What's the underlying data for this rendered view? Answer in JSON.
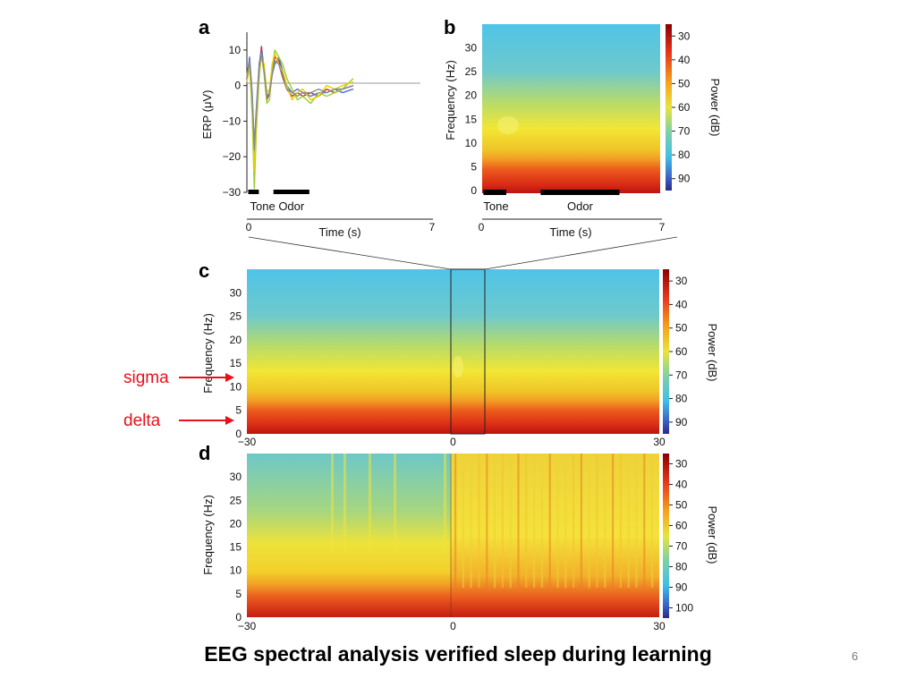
{
  "slide": {
    "title": "EEG spectral analysis verified sleep during learning",
    "page_number": "6"
  },
  "annotations": [
    {
      "label": "sigma",
      "color": "#e8101a",
      "points_to_hz": 11
    },
    {
      "label": "delta",
      "color": "#e8101a",
      "points_to_hz": 3
    }
  ],
  "chart_data": [
    {
      "panel": "a",
      "type": "line",
      "xlabel": "Time (s)",
      "ylabel": "ERP (μV)",
      "xlim": [
        0,
        7
      ],
      "ylim": [
        -30,
        15
      ],
      "x_ticks": [
        "0",
        "7"
      ],
      "y_ticks": [
        "10",
        "0",
        "−10",
        "−20",
        "−30"
      ],
      "y_tick_values": [
        10,
        0,
        -10,
        -20,
        -30
      ],
      "events": [
        {
          "label": "Tone",
          "start": 0.05,
          "end": 0.45
        },
        {
          "label": "Odor",
          "start": 1.0,
          "end": 2.35
        }
      ],
      "series_colors": [
        "#d62728",
        "#4a6fd6",
        "#9acd32",
        "#e6d000",
        "#8a8a8a"
      ],
      "series": [
        {
          "values": [
            [
              0,
              2
            ],
            [
              0.1,
              7
            ],
            [
              0.2,
              -5
            ],
            [
              0.28,
              -20
            ],
            [
              0.36,
              -8
            ],
            [
              0.46,
              5
            ],
            [
              0.55,
              11
            ],
            [
              0.65,
              4
            ],
            [
              0.75,
              -4
            ],
            [
              0.85,
              -2
            ],
            [
              0.95,
              4
            ],
            [
              1.05,
              8
            ],
            [
              1.2,
              7
            ],
            [
              1.35,
              3
            ],
            [
              1.5,
              -1
            ],
            [
              1.7,
              -3
            ],
            [
              1.9,
              -2
            ],
            [
              2.1,
              -3
            ],
            [
              2.4,
              -2
            ],
            [
              2.7,
              -3
            ],
            [
              3.0,
              -1
            ],
            [
              3.3,
              -2
            ],
            [
              3.6,
              -1
            ],
            [
              4.0,
              0
            ]
          ]
        },
        {
          "values": [
            [
              0,
              2
            ],
            [
              0.1,
              8
            ],
            [
              0.2,
              -2
            ],
            [
              0.28,
              -17
            ],
            [
              0.36,
              -6
            ],
            [
              0.46,
              6
            ],
            [
              0.55,
              10
            ],
            [
              0.65,
              5
            ],
            [
              0.75,
              -3
            ],
            [
              0.85,
              -3
            ],
            [
              0.95,
              3
            ],
            [
              1.05,
              6
            ],
            [
              1.2,
              8
            ],
            [
              1.35,
              4
            ],
            [
              1.5,
              0
            ],
            [
              1.7,
              -2
            ],
            [
              1.9,
              -1
            ],
            [
              2.1,
              -2
            ],
            [
              2.4,
              -3
            ],
            [
              2.7,
              -2
            ],
            [
              3.0,
              -2
            ],
            [
              3.3,
              -1
            ],
            [
              3.6,
              -2
            ],
            [
              4.0,
              -1
            ]
          ]
        },
        {
          "values": [
            [
              0,
              3
            ],
            [
              0.1,
              6
            ],
            [
              0.2,
              -8
            ],
            [
              0.28,
              -29
            ],
            [
              0.36,
              -12
            ],
            [
              0.46,
              2
            ],
            [
              0.55,
              9
            ],
            [
              0.65,
              3
            ],
            [
              0.75,
              -5
            ],
            [
              0.85,
              -4
            ],
            [
              0.95,
              5
            ],
            [
              1.05,
              10
            ],
            [
              1.2,
              8
            ],
            [
              1.35,
              6
            ],
            [
              1.5,
              2
            ],
            [
              1.7,
              -1
            ],
            [
              1.9,
              -4
            ],
            [
              2.1,
              -3
            ],
            [
              2.4,
              -5
            ],
            [
              2.7,
              -2
            ],
            [
              3.0,
              -3
            ],
            [
              3.3,
              -2
            ],
            [
              3.6,
              -1
            ],
            [
              4.0,
              2
            ]
          ]
        },
        {
          "values": [
            [
              0,
              1
            ],
            [
              0.1,
              5
            ],
            [
              0.2,
              -4
            ],
            [
              0.28,
              -24
            ],
            [
              0.36,
              -10
            ],
            [
              0.46,
              4
            ],
            [
              0.55,
              8
            ],
            [
              0.65,
              6
            ],
            [
              0.75,
              -2
            ],
            [
              0.85,
              -1
            ],
            [
              0.95,
              6
            ],
            [
              1.05,
              9
            ],
            [
              1.2,
              6
            ],
            [
              1.35,
              4
            ],
            [
              1.5,
              0
            ],
            [
              1.7,
              -4
            ],
            [
              1.9,
              -2
            ],
            [
              2.1,
              -1
            ],
            [
              2.4,
              -4
            ],
            [
              2.7,
              -3
            ],
            [
              3.0,
              0
            ],
            [
              3.3,
              -1
            ],
            [
              3.6,
              0
            ],
            [
              4.0,
              1
            ]
          ]
        },
        {
          "values": [
            [
              0,
              2
            ],
            [
              0.1,
              7
            ],
            [
              0.2,
              -3
            ],
            [
              0.28,
              -18
            ],
            [
              0.36,
              -7
            ],
            [
              0.46,
              5
            ],
            [
              0.55,
              9
            ],
            [
              0.65,
              4
            ],
            [
              0.75,
              -3
            ],
            [
              0.85,
              -2
            ],
            [
              0.95,
              3
            ],
            [
              1.05,
              7
            ],
            [
              1.2,
              6
            ],
            [
              1.35,
              2
            ],
            [
              1.5,
              -1
            ],
            [
              1.7,
              -2
            ],
            [
              1.9,
              -3
            ],
            [
              2.1,
              -2
            ],
            [
              2.4,
              -2
            ],
            [
              2.7,
              -1
            ],
            [
              3.0,
              -2
            ],
            [
              3.3,
              -1
            ],
            [
              3.6,
              -1
            ],
            [
              4.0,
              0
            ]
          ]
        }
      ]
    },
    {
      "panel": "b",
      "type": "heatmap",
      "xlabel": "Time (s)",
      "ylabel": "Frequency (Hz)",
      "colorbar_label": "Power (dB)",
      "xlim": [
        0,
        7
      ],
      "ylim": [
        0,
        35
      ],
      "x_ticks": [
        "0",
        "7"
      ],
      "y_ticks": [
        "30",
        "25",
        "20",
        "15",
        "10",
        "5",
        "0"
      ],
      "y_tick_values": [
        30,
        25,
        20,
        15,
        10,
        5,
        0
      ],
      "colorbar_ticks": [
        "30",
        "40",
        "50",
        "60",
        "70",
        "80",
        "90"
      ],
      "colorbar_range": [
        30,
        90
      ],
      "events": [
        {
          "label": "Tone",
          "start": 0.05,
          "end": 0.95
        },
        {
          "label": "Odor",
          "start": 2.3,
          "end": 5.4
        }
      ]
    },
    {
      "panel": "c",
      "type": "heatmap",
      "ylabel": "Frequency (Hz)",
      "colorbar_label": "Power (dB)",
      "xlim": [
        -30,
        30
      ],
      "ylim": [
        0,
        35
      ],
      "x_ticks": [
        "−30",
        "0",
        "30"
      ],
      "x_tick_values": [
        -30,
        0,
        30
      ],
      "y_ticks": [
        "30",
        "25",
        "20",
        "15",
        "10",
        "5",
        "0"
      ],
      "y_tick_values": [
        30,
        25,
        20,
        15,
        10,
        5,
        0
      ],
      "colorbar_ticks": [
        "30",
        "40",
        "50",
        "60",
        "70",
        "80",
        "90"
      ],
      "colorbar_range": [
        30,
        90
      ],
      "zoom_window": [
        0,
        7
      ]
    },
    {
      "panel": "d",
      "type": "heatmap",
      "ylabel": "Frequency (Hz)",
      "colorbar_label": "Power (dB)",
      "xlim": [
        -30,
        30
      ],
      "ylim": [
        0,
        35
      ],
      "x_ticks": [
        "−30",
        "0",
        "30"
      ],
      "x_tick_values": [
        -30,
        0,
        30
      ],
      "y_ticks": [
        "30",
        "25",
        "20",
        "15",
        "10",
        "5",
        "0"
      ],
      "y_tick_values": [
        30,
        25,
        20,
        15,
        10,
        5,
        0
      ],
      "colorbar_ticks": [
        "30",
        "40",
        "50",
        "60",
        "70",
        "80",
        "90",
        "100"
      ],
      "colorbar_range": [
        30,
        100
      ]
    }
  ]
}
